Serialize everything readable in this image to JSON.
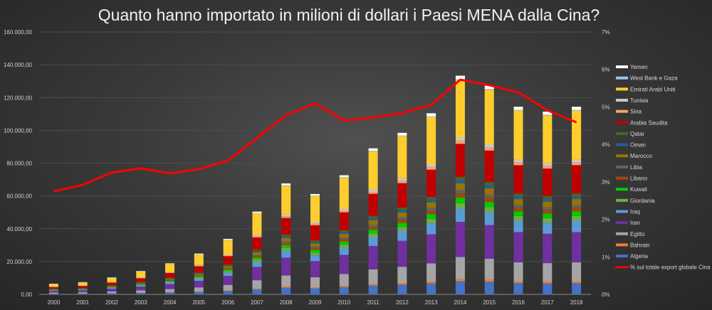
{
  "chart_data": {
    "type": "bar",
    "subtype": "stacked bar with line on secondary axis",
    "title": "Quanto hanno importato in milioni di dollari i Paesi MENA dalla Cina?",
    "categories": [
      "2000",
      "2001",
      "2002",
      "2003",
      "2004",
      "2005",
      "2006",
      "2007",
      "2008",
      "2009",
      "2010",
      "2011",
      "2012",
      "2013",
      "2014",
      "2015",
      "2016",
      "2017",
      "2018"
    ],
    "ylim": [
      0,
      160000
    ],
    "y_ticks": [
      "0,00",
      "20.000,00",
      "40.000,00",
      "60.000,00",
      "80.000,00",
      "100.000,00",
      "120.000,00",
      "140.000,00",
      "160.000,00"
    ],
    "y2lim": [
      0,
      7
    ],
    "y2_ticks": [
      "0%",
      "1%",
      "2%",
      "3%",
      "4%",
      "5%",
      "6%",
      "7%"
    ],
    "grid": true,
    "legend_position": "right",
    "series": [
      {
        "name": "Algeria",
        "color": "#4472c4",
        "values": [
          390,
          450,
          624,
          858,
          1140,
          1500,
          2040,
          3042,
          4080,
          3690,
          4380,
          5370,
          5940,
          6660,
          8040,
          7680,
          6900,
          6720,
          6900
        ]
      },
      {
        "name": "Bahrain",
        "color": "#ed7d31",
        "values": [
          65,
          75,
          104,
          143,
          190,
          250,
          340,
          507,
          680,
          615,
          730,
          895,
          990,
          1110,
          1340,
          1280,
          1150,
          1120,
          1150
        ]
      },
      {
        "name": "Egitto",
        "color": "#a5a5a5",
        "values": [
          650,
          750,
          1040,
          1430,
          1900,
          2500,
          3400,
          5070,
          6800,
          6150,
          7300,
          8950,
          9900,
          11100,
          13400,
          12800,
          11500,
          11200,
          11500
        ]
      },
      {
        "name": "Iran",
        "color": "#7030a0",
        "values": [
          1040,
          1200,
          1664,
          2288,
          3040,
          4000,
          5440,
          8112,
          10880,
          9840,
          11680,
          14320,
          15840,
          17760,
          21440,
          20480,
          18400,
          17920,
          18400
        ]
      },
      {
        "name": "Iraq",
        "color": "#5b9bd5",
        "values": [
          390,
          450,
          624,
          858,
          1140,
          1500,
          2040,
          3042,
          4080,
          3690,
          4380,
          5370,
          5940,
          6660,
          8040,
          7680,
          6900,
          6720,
          6900
        ]
      },
      {
        "name": "Giordania",
        "color": "#70ad47",
        "values": [
          163,
          188,
          260,
          358,
          475,
          625,
          850,
          1268,
          1700,
          1538,
          1825,
          2238,
          2475,
          2775,
          3350,
          3200,
          2875,
          2800,
          2875
        ]
      },
      {
        "name": "Kuwait",
        "color": "#00cc00",
        "values": [
          163,
          188,
          260,
          358,
          475,
          625,
          850,
          1268,
          1700,
          1538,
          1825,
          2238,
          2475,
          2775,
          3350,
          3200,
          2875,
          2800,
          2875
        ]
      },
      {
        "name": "Libano",
        "color": "#9e480e",
        "values": [
          130,
          150,
          208,
          286,
          380,
          500,
          680,
          1014,
          1360,
          1230,
          1460,
          1790,
          1980,
          2220,
          2680,
          2560,
          2300,
          2240,
          2300
        ]
      },
      {
        "name": "Libia",
        "color": "#636363",
        "values": [
          98,
          113,
          156,
          215,
          285,
          375,
          510,
          761,
          1020,
          923,
          1095,
          1343,
          1485,
          1665,
          2010,
          1920,
          1725,
          1680,
          1725
        ]
      },
      {
        "name": "Marocco",
        "color": "#997300",
        "values": [
          195,
          225,
          312,
          429,
          570,
          750,
          1020,
          1521,
          2040,
          1845,
          2190,
          2685,
          2970,
          3330,
          4020,
          3840,
          3450,
          3360,
          3450
        ]
      },
      {
        "name": "Oman",
        "color": "#255e91",
        "values": [
          98,
          113,
          156,
          215,
          285,
          375,
          510,
          761,
          1020,
          923,
          1095,
          1343,
          1485,
          1665,
          2010,
          1920,
          1725,
          1680,
          1725
        ]
      },
      {
        "name": "Qatar",
        "color": "#43682b",
        "values": [
          98,
          113,
          156,
          215,
          285,
          375,
          510,
          761,
          1020,
          923,
          1095,
          1343,
          1485,
          1665,
          2010,
          1920,
          1725,
          1680,
          1725
        ]
      },
      {
        "name": "Arabia Saudita",
        "color": "#c00000",
        "values": [
          975,
          1125,
          1560,
          2145,
          2850,
          3750,
          5100,
          7605,
          10200,
          9225,
          10950,
          13425,
          14850,
          16650,
          20100,
          19200,
          17250,
          16800,
          17250
        ]
      },
      {
        "name": "Siria",
        "color": "#f4a26b",
        "values": [
          98,
          113,
          156,
          215,
          285,
          375,
          510,
          761,
          1020,
          923,
          1095,
          1343,
          1485,
          1665,
          2010,
          1920,
          1725,
          1680,
          1725
        ]
      },
      {
        "name": "Tunisia",
        "color": "#c9c9c9",
        "values": [
          98,
          113,
          156,
          215,
          285,
          375,
          510,
          761,
          1020,
          923,
          1095,
          1343,
          1485,
          1665,
          2010,
          1920,
          1725,
          1680,
          1725
        ]
      },
      {
        "name": "Emirati Arabi Uniti",
        "color": "#ffcd2e",
        "values": [
          1690,
          1950,
          2704,
          3718,
          4940,
          6500,
          8840,
          13182,
          17680,
          15990,
          18980,
          23270,
          25740,
          28860,
          34840,
          33280,
          29900,
          29120,
          29900
        ]
      },
      {
        "name": "West Bank e Gaza",
        "color": "#9dc3e6",
        "values": [
          20,
          23,
          31,
          43,
          57,
          75,
          102,
          152,
          204,
          185,
          219,
          269,
          297,
          333,
          402,
          384,
          345,
          336,
          345
        ]
      },
      {
        "name": "Yemen",
        "color": "#ffffff",
        "values": [
          111,
          128,
          177,
          243,
          323,
          425,
          578,
          862,
          1156,
          1046,
          1241,
          1522,
          1683,
          1887,
          2278,
          2176,
          1955,
          1904,
          1955
        ]
      }
    ],
    "line": {
      "name": "% sul totale export globale Cina",
      "color": "#ff0000",
      "axis": "secondary",
      "values": [
        2.75,
        2.92,
        3.25,
        3.36,
        3.23,
        3.34,
        3.57,
        4.17,
        4.78,
        5.1,
        4.63,
        4.72,
        4.84,
        5.05,
        5.73,
        5.58,
        5.39,
        4.91,
        4.59
      ]
    }
  }
}
